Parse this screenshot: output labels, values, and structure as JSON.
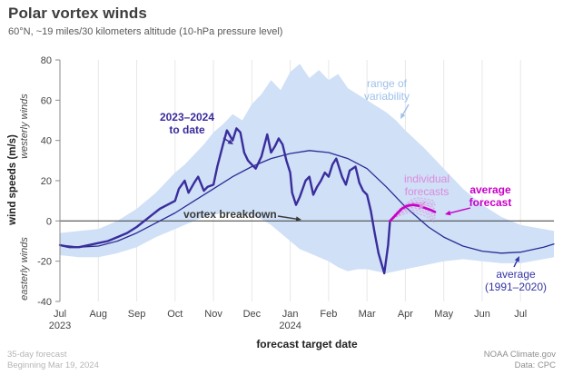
{
  "header": {
    "title": "Polar vortex winds",
    "subtitle": "60°N, ~19 miles/30 kilometers altitude (10-hPa pressure level)"
  },
  "footer": {
    "left1": "35-day forecast",
    "left2": "Beginning Mar 19, 2024",
    "right1": "NOAA Climate.gov",
    "right2": "Data: CPC"
  },
  "chart_data": {
    "type": "line",
    "title": "Polar vortex winds",
    "xlabel": "forecast target date",
    "ylabel": "wind speeds (m/s)",
    "ylabel_upper": "westerly winds",
    "ylabel_lower": "easterly winds",
    "x_unit": "months since Jul 1, 2023",
    "xlim": [
      0,
      12.87
    ],
    "ylim": [
      -40,
      80
    ],
    "yticks": [
      80,
      60,
      40,
      20,
      0,
      -20,
      -40
    ],
    "grid": "vertical-monthly",
    "zero_line_value": 0,
    "month_ticks": [
      {
        "m": 0,
        "label": "Jul",
        "year": "2023"
      },
      {
        "m": 1,
        "label": "Aug"
      },
      {
        "m": 2,
        "label": "Sep"
      },
      {
        "m": 3,
        "label": "Oct"
      },
      {
        "m": 4,
        "label": "Nov"
      },
      {
        "m": 5,
        "label": "Dec"
      },
      {
        "m": 6,
        "label": "Jan",
        "year": "2024"
      },
      {
        "m": 7,
        "label": "Feb"
      },
      {
        "m": 8,
        "label": "Mar"
      },
      {
        "m": 9,
        "label": "Apr"
      },
      {
        "m": 10,
        "label": "May"
      },
      {
        "m": 11,
        "label": "Jun"
      },
      {
        "m": 12,
        "label": "Jul"
      }
    ],
    "series": [
      {
        "id": "band",
        "name": "range of variability",
        "type": "band",
        "color": "#cfe0f7",
        "x": [
          0,
          0.5,
          1,
          1.5,
          2,
          2.5,
          3,
          3.25,
          3.5,
          3.75,
          4,
          4.25,
          4.5,
          4.75,
          5,
          5.25,
          5.5,
          5.75,
          6,
          6.25,
          6.5,
          6.75,
          7,
          7.25,
          7.5,
          7.75,
          8,
          8.25,
          8.5,
          8.75,
          9,
          9.5,
          10,
          10.5,
          11,
          11.5,
          12,
          12.6,
          12.87
        ],
        "upper": [
          -6,
          -5,
          -4,
          0,
          6,
          14,
          24,
          28,
          33,
          38,
          44,
          48,
          53,
          50,
          58,
          63,
          70,
          65,
          74,
          78,
          71,
          75,
          70,
          73,
          66,
          63,
          60,
          57,
          54,
          50,
          45,
          36,
          26,
          16,
          8,
          2,
          -2,
          -4,
          -5
        ],
        "lower": [
          -17,
          -18,
          -18,
          -16,
          -13,
          -8,
          -4,
          -2,
          0,
          2,
          3,
          4,
          4,
          3,
          3,
          1,
          -2,
          -6,
          -10,
          -14,
          -16,
          -18,
          -20,
          -23,
          -25,
          -24,
          -24,
          -25,
          -26,
          -25,
          -24,
          -22,
          -20,
          -19,
          -20,
          -21,
          -21,
          -19,
          -18
        ]
      },
      {
        "id": "climatology",
        "name": "average (1991–2020)",
        "type": "line",
        "color": "#2b2b94",
        "width": 1.3,
        "x": [
          0,
          0.5,
          1,
          1.5,
          2,
          2.5,
          3,
          3.5,
          4,
          4.5,
          5,
          5.5,
          6,
          6.5,
          7,
          7.5,
          8,
          8.5,
          9,
          9.3,
          9.6,
          10,
          10.5,
          11,
          11.5,
          12,
          12.6,
          12.87
        ],
        "y": [
          -12,
          -13,
          -12.5,
          -10,
          -6,
          -1,
          4,
          10,
          16,
          22,
          27,
          31,
          33.5,
          35,
          34,
          31,
          26,
          17,
          7,
          2,
          -3,
          -8,
          -12.5,
          -15,
          -16,
          -15.5,
          -13,
          -11.5
        ]
      },
      {
        "id": "observed",
        "name": "2023–2024 to date",
        "type": "line",
        "color": "#3a2d9c",
        "width": 2.4,
        "x": [
          0,
          0.25,
          0.5,
          0.75,
          1.0,
          1.25,
          1.5,
          1.75,
          2.0,
          2.2,
          2.4,
          2.6,
          2.8,
          3.0,
          3.1,
          3.25,
          3.35,
          3.5,
          3.6,
          3.75,
          3.85,
          4.0,
          4.1,
          4.25,
          4.35,
          4.5,
          4.6,
          4.7,
          4.8,
          4.9,
          5.0,
          5.1,
          5.25,
          5.4,
          5.5,
          5.6,
          5.7,
          5.8,
          5.9,
          6.0,
          6.05,
          6.15,
          6.25,
          6.4,
          6.5,
          6.6,
          6.7,
          6.8,
          6.9,
          7.0,
          7.1,
          7.2,
          7.35,
          7.45,
          7.55,
          7.7,
          7.8,
          7.9,
          8.0,
          8.1,
          8.2,
          8.3,
          8.45,
          8.55,
          8.6
        ],
        "y": [
          -12,
          -13,
          -13,
          -12,
          -11,
          -10,
          -8,
          -6,
          -3,
          0,
          3,
          6,
          8,
          10,
          16,
          20,
          14,
          19,
          22,
          15,
          17,
          18,
          27,
          38,
          45,
          40,
          46,
          44,
          34,
          30,
          28,
          26,
          32,
          43,
          34,
          37,
          41,
          38,
          30,
          24,
          14,
          8,
          12,
          20,
          22,
          13,
          17,
          20,
          24,
          22,
          28,
          31,
          22,
          18,
          25,
          27,
          19,
          15,
          13,
          5,
          -6,
          -16,
          -26,
          -12,
          0
        ]
      },
      {
        "id": "members",
        "name": "individual forecasts",
        "type": "multiline",
        "color": "#d883d8",
        "width": 1.2,
        "opacity": 0.5,
        "x": [
          8.6,
          8.75,
          8.9,
          9.05,
          9.2,
          9.35,
          9.5,
          9.65,
          9.77
        ],
        "members": [
          [
            0,
            2,
            5,
            7,
            9,
            9.5,
            9,
            8.5,
            8
          ],
          [
            0,
            3,
            6,
            8,
            10,
            10.5,
            10,
            9.5,
            9
          ],
          [
            0,
            4,
            6,
            8,
            8.5,
            8,
            7,
            5,
            3
          ],
          [
            0,
            3,
            6,
            9,
            11,
            11.5,
            11,
            10.5,
            10
          ],
          [
            0,
            2,
            4,
            5,
            5.5,
            5,
            4,
            2,
            0.5
          ],
          [
            0,
            3,
            5,
            6.5,
            7,
            7,
            6,
            4,
            2.5
          ],
          [
            0,
            4,
            6,
            8,
            9,
            9,
            8,
            7,
            6
          ],
          [
            0,
            2,
            4,
            6,
            6.5,
            6,
            5,
            3,
            1.5
          ],
          [
            0,
            3,
            5,
            7,
            8.5,
            9,
            9,
            8.5,
            8
          ],
          [
            0,
            4,
            7,
            8.5,
            9,
            8,
            6.5,
            5,
            4
          ],
          [
            0,
            2,
            3,
            4,
            4.5,
            3.5,
            2.5,
            1,
            -1
          ],
          [
            0,
            3,
            5,
            7,
            8,
            8.5,
            8,
            7.5,
            7
          ]
        ]
      },
      {
        "id": "forecast_mean",
        "name": "average forecast",
        "type": "line",
        "color": "#c800c8",
        "width": 2.6,
        "x": [
          8.6,
          8.75,
          8.9,
          9.05,
          9.2,
          9.35,
          9.5,
          9.65,
          9.77
        ],
        "y": [
          0,
          3,
          6,
          7.5,
          8,
          7.5,
          6.5,
          5.5,
          4.5
        ]
      }
    ],
    "annotations": [
      {
        "id": "to-date",
        "lines": [
          "2023–2024",
          "to date"
        ],
        "color": "#3a2d9c"
      },
      {
        "id": "range-of-variability",
        "lines": [
          "range of",
          "variability"
        ],
        "color": "#9fc0ec"
      },
      {
        "id": "vortex-breakdown",
        "lines": [
          "vortex breakdown"
        ],
        "color": "#3a3a3a"
      },
      {
        "id": "individual-forecasts",
        "lines": [
          "individual",
          "forecasts"
        ],
        "color": "#dd8add"
      },
      {
        "id": "average-forecast",
        "lines": [
          "average",
          "forecast"
        ],
        "color": "#c800c8"
      },
      {
        "id": "average-1991-2020",
        "lines": [
          "average",
          "(1991–2020)"
        ],
        "color": "#3434a4"
      }
    ]
  }
}
